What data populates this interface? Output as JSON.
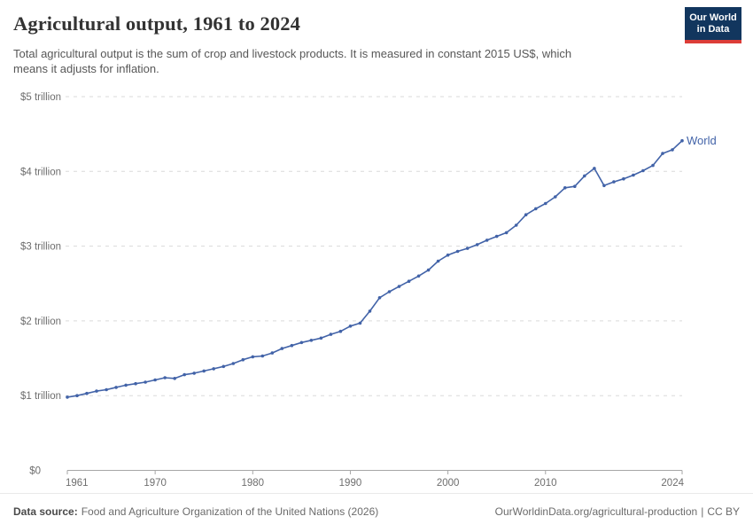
{
  "header": {
    "title": "Agricultural output, 1961 to 2024",
    "subtitle_line1": "Total agricultural output is the sum of crop and livestock products. It is measured in constant 2015 US$, which",
    "subtitle_line2": "means it adjusts for inflation.",
    "logo": {
      "line1": "Our World",
      "line2": "in Data"
    }
  },
  "chart_data": {
    "type": "line",
    "title": "Agricultural output, 1961 to 2024",
    "xlabel": "",
    "ylabel": "",
    "xlim": [
      1961,
      2024
    ],
    "ylim": [
      0,
      5
    ],
    "grid": true,
    "legend_position": "end-of-line",
    "x_ticks": [
      1961,
      1970,
      1980,
      1990,
      2000,
      2010,
      2024
    ],
    "y_ticks": [
      0,
      1,
      2,
      3,
      4,
      5
    ],
    "y_tick_labels": [
      "$0",
      "$1 trillion",
      "$2 trillion",
      "$3 trillion",
      "$4 trillion",
      "$5 trillion"
    ],
    "unit": "constant 2015 US$, trillions",
    "line_color": "#4263a8",
    "grid_color": "#dadada",
    "axis_color": "#a6a6a6",
    "tick_label_color": "#6e6e6e",
    "series": [
      {
        "name": "World",
        "x": [
          1961,
          1962,
          1963,
          1964,
          1965,
          1966,
          1967,
          1968,
          1969,
          1970,
          1971,
          1972,
          1973,
          1974,
          1975,
          1976,
          1977,
          1978,
          1979,
          1980,
          1981,
          1982,
          1983,
          1984,
          1985,
          1986,
          1987,
          1988,
          1989,
          1990,
          1991,
          1992,
          1993,
          1994,
          1995,
          1996,
          1997,
          1998,
          1999,
          2000,
          2001,
          2002,
          2003,
          2004,
          2005,
          2006,
          2007,
          2008,
          2009,
          2010,
          2011,
          2012,
          2013,
          2014,
          2015,
          2016,
          2017,
          2018,
          2019,
          2020,
          2021,
          2022,
          2023,
          2024
        ],
        "values": [
          0.98,
          1.0,
          1.03,
          1.06,
          1.08,
          1.11,
          1.14,
          1.16,
          1.18,
          1.21,
          1.24,
          1.23,
          1.28,
          1.3,
          1.33,
          1.36,
          1.39,
          1.43,
          1.48,
          1.52,
          1.53,
          1.57,
          1.63,
          1.67,
          1.71,
          1.74,
          1.77,
          1.82,
          1.86,
          1.93,
          1.97,
          2.13,
          2.31,
          2.39,
          2.46,
          2.53,
          2.6,
          2.68,
          2.8,
          2.88,
          2.93,
          2.97,
          3.02,
          3.08,
          3.13,
          3.18,
          3.28,
          3.42,
          3.5,
          3.57,
          3.66,
          3.78,
          3.8,
          3.94,
          4.04,
          3.81,
          3.86,
          3.9,
          3.95,
          4.01,
          4.08,
          4.24,
          4.29,
          4.41
        ]
      }
    ]
  },
  "footer": {
    "source_label": "Data source:",
    "source_text": "Food and Agriculture Organization of the United Nations (2026)",
    "link_text": "OurWorldinData.org/agricultural-production",
    "separator": "|",
    "license_text": "CC BY"
  }
}
